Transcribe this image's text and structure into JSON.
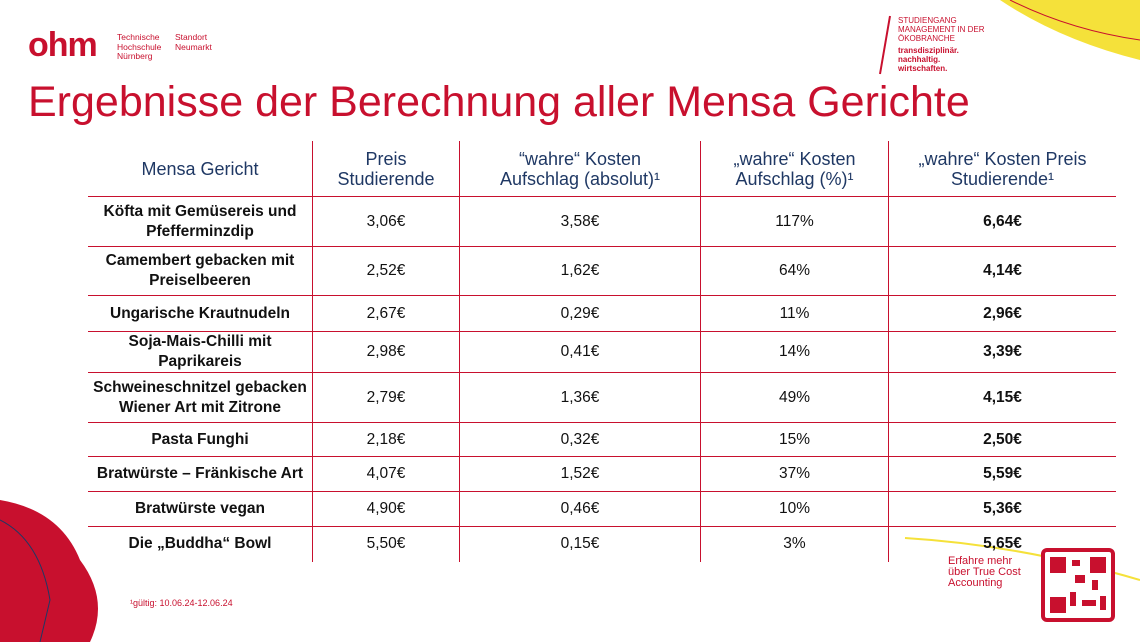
{
  "logo": {
    "mark": "ohm",
    "school": [
      "Technische",
      "Hochschule",
      "Nürnberg"
    ],
    "site": [
      "Standort",
      "Neumarkt"
    ]
  },
  "program": [
    "STUDIENGANG",
    "MANAGEMENT IN DER",
    "ÖKOBRANCHE"
  ],
  "tagline": [
    "transdisziplinär.",
    "nachhaltig.",
    "wirtschaften."
  ],
  "title": "Ergebnisse der Berechnung aller Mensa Gerichte",
  "table": {
    "header": [
      [
        "Mensa Gericht"
      ],
      [
        "Preis",
        "Studierende"
      ],
      [
        "“wahre“ Kosten",
        "Aufschlag (absolut)¹"
      ],
      [
        "„wahre“ Kosten",
        "Aufschlag (%)¹"
      ],
      [
        "„wahre“ Kosten Preis",
        "Studierende¹"
      ]
    ],
    "rows": [
      [
        [
          "Köfta mit Gemüsereis und",
          "Pfefferminzdip"
        ],
        "3,06€",
        "3,58€",
        "117%",
        "6,64€"
      ],
      [
        [
          "Camembert gebacken mit",
          "Preiselbeeren"
        ],
        "2,52€",
        "1,62€",
        "64%",
        "4,14€"
      ],
      [
        [
          "Ungarische Krautnudeln"
        ],
        "2,67€",
        "0,29€",
        "11%",
        "2,96€"
      ],
      [
        [
          "Soja-Mais-Chilli mit Paprikareis"
        ],
        "2,98€",
        "0,41€",
        "14%",
        "3,39€"
      ],
      [
        [
          "Schweineschnitzel gebacken",
          "Wiener Art mit Zitrone"
        ],
        "2,79€",
        "1,36€",
        "49%",
        "4,15€"
      ],
      [
        [
          "Pasta Funghi"
        ],
        "2,18€",
        "0,32€",
        "15%",
        "2,50€"
      ],
      [
        [
          "Bratwürste – Fränkische Art"
        ],
        "4,07€",
        "1,52€",
        "37%",
        "5,59€"
      ],
      [
        [
          "Bratwürste vegan"
        ],
        "4,90€",
        "0,46€",
        "10%",
        "5,36€"
      ],
      [
        [
          "Die „Buddha“ Bowl"
        ],
        "5,50€",
        "0,15€",
        "3%",
        "5,65€"
      ]
    ]
  },
  "footnote": "¹gültig: 10.06.24-12.06.24",
  "qr_text": [
    "Erfahre mehr",
    "über True Cost",
    "Accounting"
  ]
}
